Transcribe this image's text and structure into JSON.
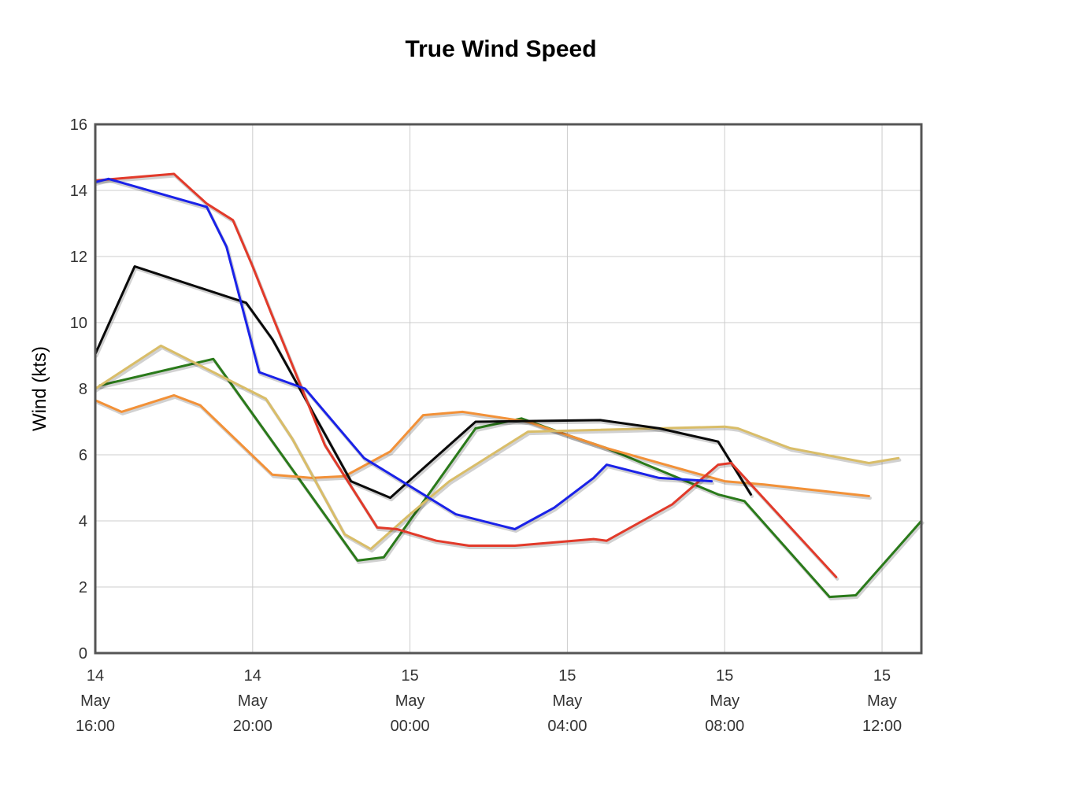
{
  "chart_data": {
    "type": "line",
    "title": "True Wind Speed",
    "xlabel": "",
    "ylabel": "Wind (kts)",
    "ylim": [
      0,
      16
    ],
    "yticks": [
      "0",
      "2",
      "4",
      "6",
      "8",
      "10",
      "12",
      "14",
      "16"
    ],
    "xlim": [
      "2014-05-14 16:00",
      "2014-05-15 13:00"
    ],
    "xticks": [
      {
        "day": "14",
        "month": "May",
        "time": "16:00"
      },
      {
        "day": "14",
        "month": "May",
        "time": "20:00"
      },
      {
        "day": "15",
        "month": "May",
        "time": "00:00"
      },
      {
        "day": "15",
        "month": "May",
        "time": "04:00"
      },
      {
        "day": "15",
        "month": "May",
        "time": "08:00"
      },
      {
        "day": "15",
        "month": "May",
        "time": "12:00"
      }
    ],
    "grid": true,
    "legend": "none",
    "series": [
      {
        "color": "#2a7a1a",
        "points": [
          [
            "14 May 16:07",
            8.1
          ],
          [
            "14 May 19:00",
            8.9
          ],
          [
            "14 May 22:40",
            2.8
          ],
          [
            "14 May 23:20",
            2.9
          ],
          [
            "15 May 01:40",
            6.8
          ],
          [
            "15 May 02:50",
            7.1
          ],
          [
            "15 May 04:00",
            6.6
          ],
          [
            "15 May 05:00",
            6.2
          ],
          [
            "15 May 07:50",
            4.8
          ],
          [
            "15 May 08:30",
            4.6
          ],
          [
            "15 May 10:40",
            1.7
          ],
          [
            "15 May 11:20",
            1.75
          ],
          [
            "15 May 13:00",
            4.0
          ]
        ]
      },
      {
        "color": "#f29138",
        "points": [
          [
            "14 May 16:00",
            7.65
          ],
          [
            "14 May 16:40",
            7.3
          ],
          [
            "14 May 18:00",
            7.8
          ],
          [
            "14 May 18:40",
            7.5
          ],
          [
            "14 May 20:30",
            5.4
          ],
          [
            "14 May 21:30",
            5.3
          ],
          [
            "14 May 22:20",
            5.35
          ],
          [
            "14 May 23:30",
            6.1
          ],
          [
            "15 May 00:20",
            7.2
          ],
          [
            "15 May 01:20",
            7.3
          ],
          [
            "15 May 03:00",
            7.0
          ],
          [
            "15 May 04:00",
            6.6
          ],
          [
            "15 May 05:00",
            6.2
          ],
          [
            "15 May 08:00",
            5.2
          ],
          [
            "15 May 09:00",
            5.1
          ],
          [
            "15 May 11:40",
            4.75
          ]
        ]
      },
      {
        "color": "#d9bd68",
        "points": [
          [
            "14 May 16:00",
            8.0
          ],
          [
            "14 May 17:40",
            9.3
          ],
          [
            "14 May 20:20",
            7.7
          ],
          [
            "14 May 21:00",
            6.5
          ],
          [
            "14 May 22:20",
            3.6
          ],
          [
            "14 May 23:00",
            3.15
          ],
          [
            "15 May 00:00",
            4.2
          ],
          [
            "15 May 01:00",
            5.2
          ],
          [
            "15 May 03:00",
            6.7
          ],
          [
            "15 May 08:00",
            6.85
          ],
          [
            "15 May 08:20",
            6.8
          ],
          [
            "15 May 09:40",
            6.2
          ],
          [
            "15 May 11:40",
            5.75
          ],
          [
            "15 May 12:25",
            5.9
          ]
        ]
      },
      {
        "color": "#0a0a0a",
        "points": [
          [
            "14 May 16:00",
            9.05
          ],
          [
            "14 May 17:00",
            11.7
          ],
          [
            "14 May 19:50",
            10.6
          ],
          [
            "14 May 20:30",
            9.5
          ],
          [
            "14 May 22:30",
            5.2
          ],
          [
            "14 May 23:30",
            4.7
          ],
          [
            "15 May 01:40",
            7.0
          ],
          [
            "15 May 04:50",
            7.05
          ],
          [
            "15 May 06:20",
            6.8
          ],
          [
            "15 May 07:50",
            6.4
          ],
          [
            "15 May 08:40",
            4.8
          ]
        ]
      },
      {
        "color": "#e23a2a",
        "points": [
          [
            "14 May 16:00",
            14.3
          ],
          [
            "14 May 18:00",
            14.5
          ],
          [
            "14 May 18:50",
            13.6
          ],
          [
            "14 May 19:30",
            13.1
          ],
          [
            "14 May 20:00",
            11.7
          ],
          [
            "14 May 20:30",
            10.2
          ],
          [
            "14 May 21:50",
            6.3
          ],
          [
            "14 May 23:10",
            3.8
          ],
          [
            "14 May 23:40",
            3.75
          ],
          [
            "15 May 00:40",
            3.4
          ],
          [
            "15 May 01:30",
            3.25
          ],
          [
            "15 May 02:40",
            3.25
          ],
          [
            "15 May 04:40",
            3.45
          ],
          [
            "15 May 05:00",
            3.4
          ],
          [
            "15 May 06:40",
            4.5
          ],
          [
            "15 May 07:50",
            5.7
          ],
          [
            "15 May 08:10",
            5.75
          ],
          [
            "15 May 10:50",
            2.3
          ]
        ]
      },
      {
        "color": "#1a22e8",
        "points": [
          [
            "14 May 16:00",
            14.25
          ],
          [
            "14 May 16:20",
            14.35
          ],
          [
            "14 May 18:50",
            13.5
          ],
          [
            "14 May 19:20",
            12.3
          ],
          [
            "14 May 20:10",
            8.5
          ],
          [
            "14 May 21:20",
            8.0
          ],
          [
            "14 May 22:50",
            5.9
          ],
          [
            "15 May 01:10",
            4.2
          ],
          [
            "15 May 02:40",
            3.75
          ],
          [
            "15 May 03:40",
            4.4
          ],
          [
            "15 May 04:40",
            5.3
          ],
          [
            "15 May 05:00",
            5.7
          ],
          [
            "15 May 06:20",
            5.3
          ],
          [
            "15 May 07:40",
            5.2
          ]
        ]
      }
    ]
  }
}
